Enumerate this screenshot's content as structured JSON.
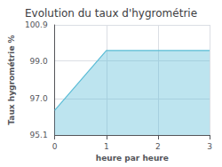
{
  "chart_data": {
    "type": "area",
    "title": "Evolution du taux d'hygrométrie",
    "x_label": "heure par heure",
    "y_label": "Taux hygrométrie %",
    "x": [
      0,
      1,
      3
    ],
    "values": [
      96.4,
      99.55,
      99.55
    ],
    "color": "#5bbcd6",
    "xlim": [
      0,
      3
    ],
    "xticks": [
      0,
      1,
      2,
      3
    ],
    "ylim": [
      95.1,
      100.9
    ],
    "yticks": [
      95.1,
      {
        "value": 97.0,
        "label": "97.0"
      },
      {
        "value": 99.0,
        "label": "99.0"
      },
      100.9
    ],
    "grid": true
  }
}
